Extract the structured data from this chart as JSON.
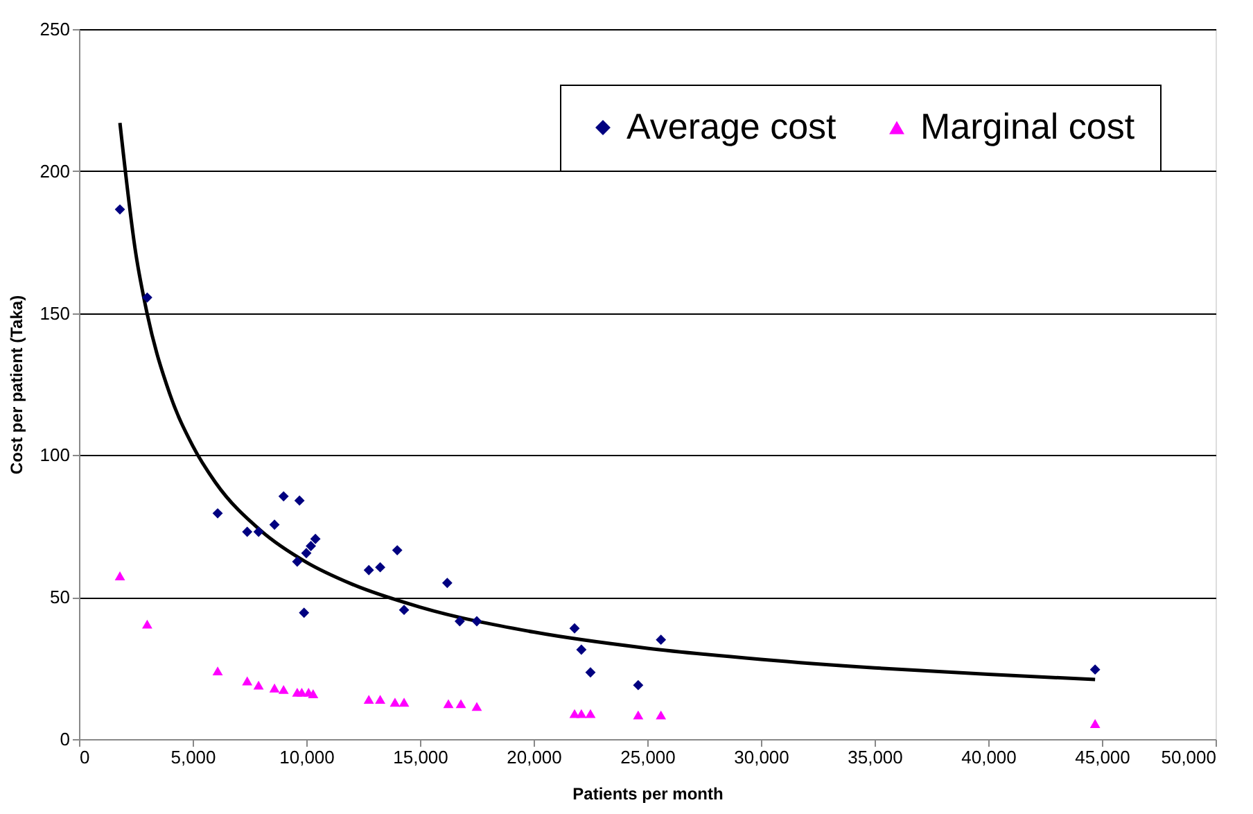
{
  "chart_data": {
    "type": "scatter",
    "xlabel": "Patients per month",
    "ylabel": "Cost per patient (Taka)",
    "xlim": [
      0,
      50000
    ],
    "ylim": [
      0,
      250
    ],
    "xticks": [
      0,
      {
        "value": 5000,
        "label": "5,000"
      },
      {
        "value": 10000,
        "label": "10,000"
      },
      {
        "value": 15000,
        "label": "15,000"
      },
      {
        "value": 20000,
        "label": "20,000"
      },
      {
        "value": 25000,
        "label": "25,000"
      },
      {
        "value": 30000,
        "label": "30,000"
      },
      {
        "value": 35000,
        "label": "35,000"
      },
      {
        "value": 40000,
        "label": "40,000"
      },
      {
        "value": 45000,
        "label": "45,000"
      },
      {
        "value": 50000,
        "label": "50,000"
      }
    ],
    "yticks": [
      0,
      50,
      100,
      150,
      200,
      250
    ],
    "grid": "y",
    "legend": "top right",
    "series": [
      {
        "name": "Average cost",
        "color": "#000080",
        "type": "scatter",
        "marker": "diamond",
        "x": [
          1800,
          3000,
          6100,
          7400,
          7900,
          8600,
          9000,
          9700,
          9600,
          9900,
          10000,
          10200,
          10400,
          12750,
          13250,
          14000,
          14300,
          16200,
          16750,
          17500,
          21800,
          22100,
          22500,
          24600,
          25600,
          44700
        ],
        "values": [
          186.5,
          155.5,
          79.5,
          73,
          73,
          75.5,
          85.5,
          84,
          62.5,
          44.5,
          65.5,
          68,
          70.5,
          59.5,
          60.5,
          66.5,
          45.5,
          55,
          41.5,
          41.5,
          39,
          31.5,
          23.5,
          19,
          35,
          24.5
        ]
      },
      {
        "name": "Marginal cost",
        "color": "#ff00ff",
        "type": "scatter",
        "marker": "triangle",
        "x": [
          1800,
          3000,
          6100,
          7400,
          7900,
          8600,
          9000,
          9600,
          9800,
          10100,
          10300,
          12750,
          13250,
          13900,
          14300,
          16250,
          16800,
          17500,
          21800,
          22100,
          22500,
          24600,
          25600,
          44700
        ],
        "values": [
          57.5,
          40.5,
          24,
          20.5,
          19,
          18,
          17.5,
          16.5,
          16.5,
          16.5,
          16,
          14,
          14,
          13,
          13,
          12.5,
          12.5,
          11.5,
          9,
          9,
          9,
          8.5,
          8.5,
          5.5
        ]
      },
      {
        "color": "#000000",
        "type": "line",
        "marker": "none",
        "line_style": "solid",
        "x": [
          1800,
          2500,
          3000,
          4000,
          5000,
          6000,
          8000,
          10000,
          12000,
          15000,
          20000,
          25000,
          30000,
          35000,
          40000,
          44700
        ],
        "values": [
          217,
          170.9,
          149.7,
          121.4,
          103.3,
          90.4,
          73.4,
          62.3,
          54.6,
          46.5,
          37.7,
          32.0,
          28.1,
          25.1,
          22.8,
          21.0
        ]
      }
    ]
  }
}
